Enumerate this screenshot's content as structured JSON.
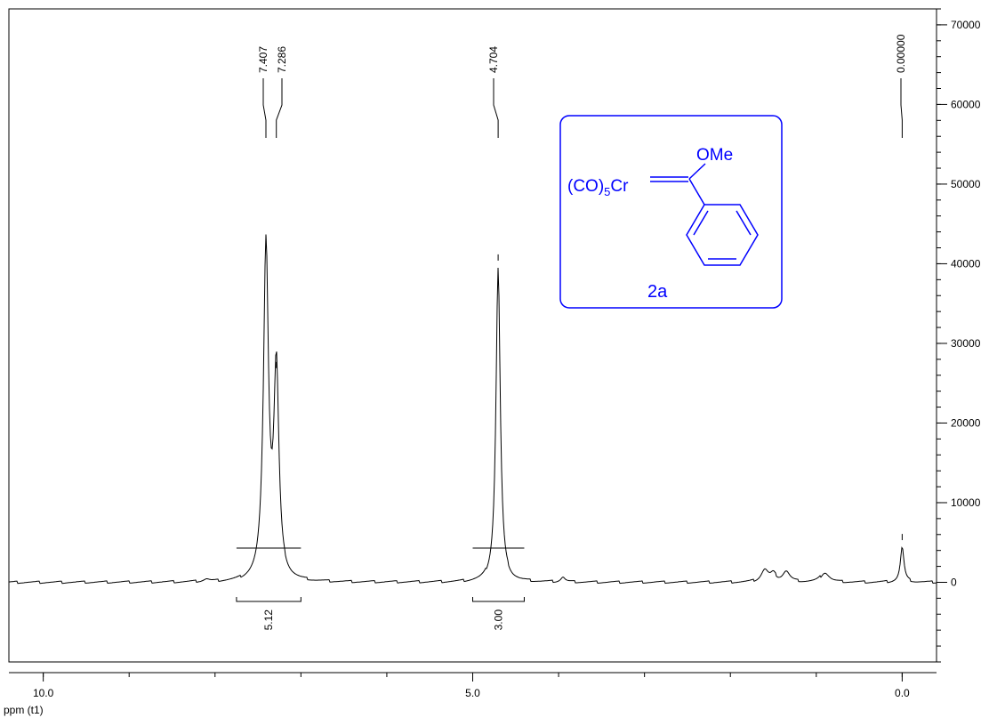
{
  "chart_data": {
    "type": "line",
    "x_axis": {
      "label": "ppm (t1)",
      "reversed": true,
      "min": -0.4,
      "max": 10.4,
      "tick_labels": [
        "10.0",
        "5.0",
        "0.0"
      ],
      "tick_values": [
        10.0,
        5.0,
        0.0
      ],
      "minor_step": 1.0
    },
    "y_axis": {
      "position": "right",
      "min": -10000,
      "max": 72000,
      "tick_labels": [
        "0",
        "10000",
        "20000",
        "30000",
        "40000",
        "50000",
        "60000",
        "70000"
      ],
      "tick_values": [
        0,
        10000,
        20000,
        30000,
        40000,
        50000,
        60000,
        70000
      ],
      "minor_step": 2000
    },
    "series": [
      {
        "peaks": [
          {
            "ppm": 7.407,
            "height": 41800,
            "width": 0.035
          },
          {
            "ppm": 7.286,
            "height": 26000,
            "width": 0.035
          },
          {
            "ppm": 4.704,
            "height": 39500,
            "width": 0.03
          },
          {
            "ppm": 0.0,
            "height": 4400,
            "width": 0.025
          },
          {
            "ppm": 1.6,
            "height": 1500,
            "width": 0.05
          },
          {
            "ppm": 1.5,
            "height": 900,
            "width": 0.04
          },
          {
            "ppm": 1.35,
            "height": 1300,
            "width": 0.05
          },
          {
            "ppm": 0.9,
            "height": 1200,
            "width": 0.06
          },
          {
            "ppm": 8.1,
            "height": 300,
            "width": 0.04
          },
          {
            "ppm": 3.95,
            "height": 600,
            "width": 0.03
          }
        ]
      }
    ],
    "peak_labels": [
      {
        "text": "7.407",
        "ppm": 7.407
      },
      {
        "text": "7.286",
        "ppm": 7.286
      },
      {
        "text": "4.704",
        "ppm": 4.704
      },
      {
        "text": "0.00000",
        "ppm": 0.0
      }
    ],
    "integrals": [
      {
        "value": "5.12",
        "from": 7.75,
        "to": 7.0
      },
      {
        "value": "3.00",
        "from": 5.0,
        "to": 4.4
      }
    ]
  },
  "structure": {
    "ligand": "OMe",
    "metal_fragment": "(CO)",
    "subscript": "5",
    "metal": "Cr",
    "compound_label": "2a",
    "color": "#0000ff"
  }
}
